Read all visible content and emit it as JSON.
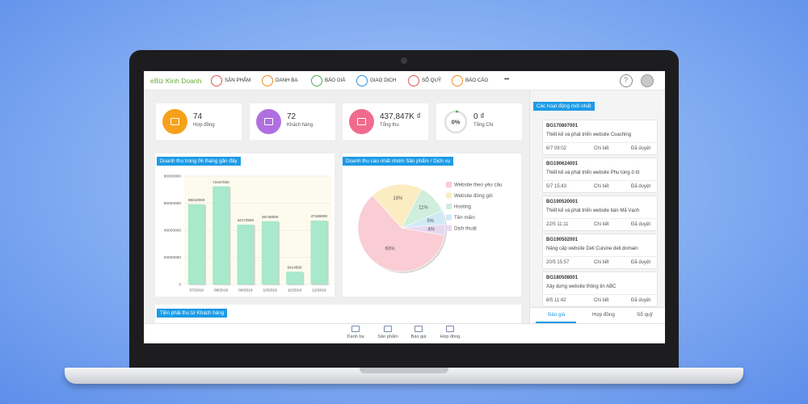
{
  "header": {
    "brand": "eBiz Kinh Doanh",
    "nav": [
      "SẢN PHẨM",
      "DANH BẠ",
      "BÁO GIÁ",
      "GIAO DỊCH",
      "SỔ QUỸ",
      "BÁO CÁO"
    ],
    "more": "•••",
    "help": "?"
  },
  "stats": [
    {
      "value": "74",
      "label": "Hợp đồng",
      "color": "#f7a11a"
    },
    {
      "value": "72",
      "label": "Khách hàng",
      "color": "#b06fe0"
    },
    {
      "value": "437,847K ₫",
      "label": "Tổng thu",
      "color": "#f06b8c"
    },
    {
      "value": "0 ₫",
      "label": "Tổng Chi",
      "ring": "0%"
    }
  ],
  "chart_data": [
    {
      "type": "bar",
      "title": "Doanh thu trong 06 tháng gần đây",
      "categories": [
        "07/2019",
        "08/2019",
        "09/2019",
        "10/2019",
        "11/2019",
        "12/2019"
      ],
      "values": [
        59216000,
        72447000,
        44172500,
        46745000,
        9414500,
        47186000
      ],
      "color": "#a8e8cb",
      "ylim": [
        0,
        80000000
      ],
      "yticks": [
        0,
        20000000,
        40000000,
        60000000,
        80000000
      ],
      "grid": true
    },
    {
      "type": "pie",
      "title": "Doanh thu cao nhất nhóm Sản phẩm / Dịch vụ",
      "categories": [
        "Website theo yêu cầu",
        "Website đóng gói",
        "Hosting",
        "Tên miền",
        "Dịch thuật"
      ],
      "values": [
        60,
        19,
        11,
        5,
        4
      ],
      "value_labels": [
        "60%",
        "19%",
        "11%",
        "5%",
        "4%"
      ],
      "colors": [
        "#f9cdd3",
        "#fbecc2",
        "#cfeedb",
        "#d0eaf4",
        "#e7d8f1"
      ]
    }
  ],
  "receivables": {
    "title": "Tiền phải thu từ Khách hàng"
  },
  "activity": {
    "title": "Các hoạt động mới nhất",
    "items": [
      {
        "code": "BG170807001",
        "text": "Thiết kế và phát triển website Coaching",
        "date": "6/7 08:02",
        "detail": "Chi tiết",
        "status": "Đã duyệt"
      },
      {
        "code": "BG190624001",
        "text": "Thiết kế và phát triển website Phụ tùng ô tô",
        "date": "5/7 15:43",
        "detail": "Chi tiết",
        "status": "Đã duyệt"
      },
      {
        "code": "BG190520001",
        "text": "Thiết kế và phát triển website bán Mã Vạch",
        "date": "22/5 11:11",
        "detail": "Chi tiết",
        "status": "Đã duyệt"
      },
      {
        "code": "BG190502001",
        "text": "Nâng cấp website Deli Cuisine deli.domain",
        "date": "20/5 15:57",
        "detail": "Chi tiết",
        "status": "Đã duyệt"
      },
      {
        "code": "BG180508001",
        "text": "Xây dựng website thông tin ABC",
        "date": "8/5 11:42",
        "detail": "Chi tiết",
        "status": "Đã duyệt"
      }
    ],
    "tabs": [
      "Báo giá",
      "Hợp đồng",
      "Sổ quỹ"
    ]
  },
  "bottom_nav": [
    "Danh bạ",
    "Sản phẩm",
    "Báo giá",
    "Hợp đồng"
  ]
}
